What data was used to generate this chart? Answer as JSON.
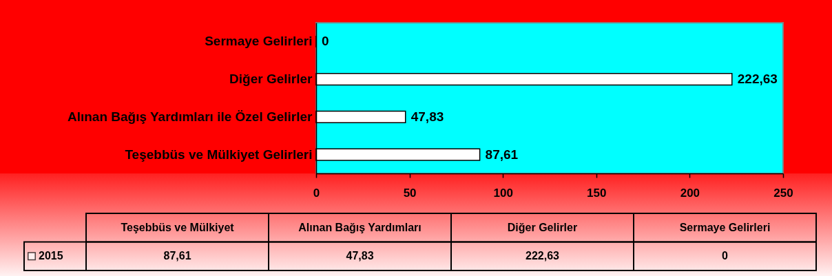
{
  "chart_data": {
    "type": "bar",
    "orientation": "horizontal",
    "categories": [
      "Sermaye Gelirleri",
      "Diğer Gelirler",
      "Alınan Bağış Yardımları ile Özel Gelirler",
      "Teşebbüs ve Mülkiyet Gelirleri"
    ],
    "series": [
      {
        "name": "2015",
        "color": "#ffffff",
        "values": [
          0,
          222.63,
          47.83,
          87.61
        ],
        "value_labels": [
          "0",
          "222,63",
          "47,83",
          "87,61"
        ]
      }
    ],
    "xlim": [
      0,
      250
    ],
    "xticks": [
      0,
      50,
      100,
      150,
      200,
      250
    ],
    "legend": "bottom left",
    "annotations": [
      "Teşebbüs ve Mülkiyet",
      "Alınan Bağış Yardımları",
      "Diğer Gelirler",
      "Sermaye Gelirleri"
    ]
  }
}
